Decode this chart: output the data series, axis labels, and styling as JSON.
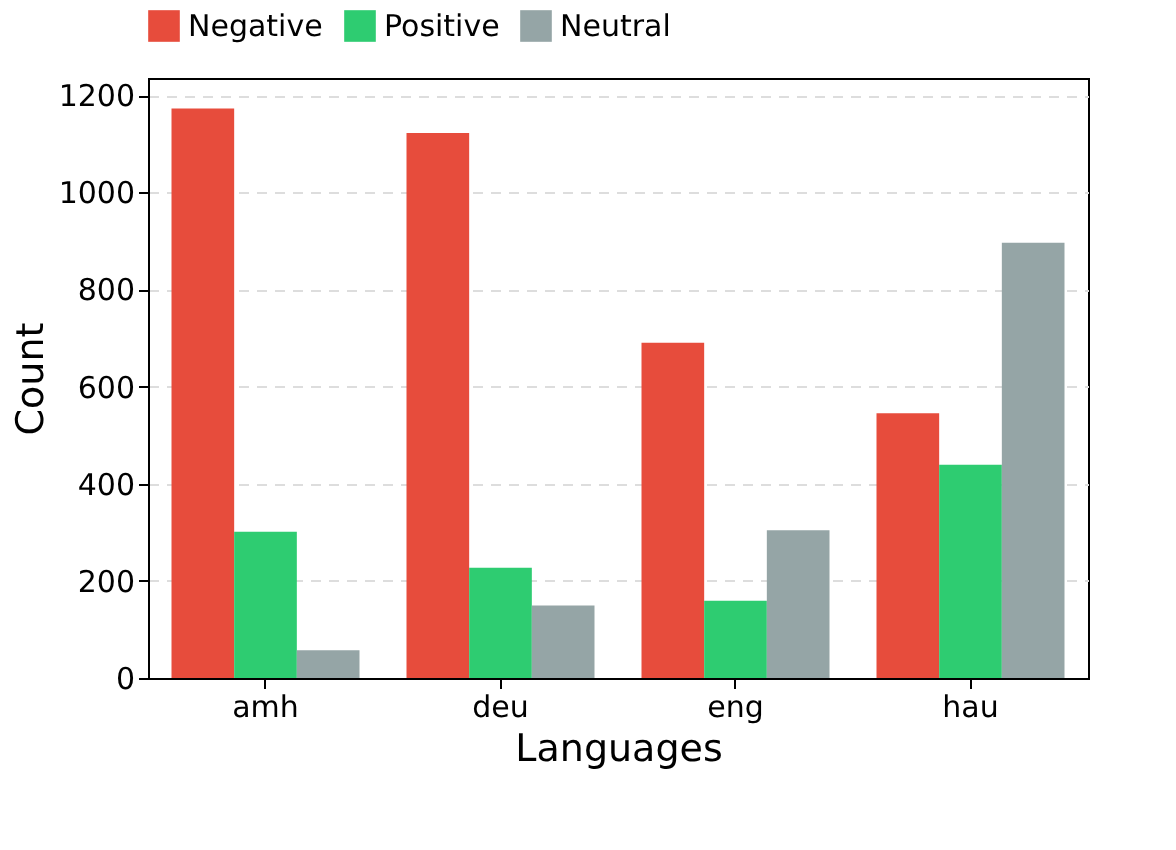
{
  "chart_data": {
    "type": "bar",
    "xlabel": "Languages",
    "ylabel": "Count",
    "categories": [
      "amh",
      "deu",
      "eng",
      "hau"
    ],
    "series": [
      {
        "name": "Negative",
        "color": "#e74c3c",
        "values": [
          1172,
          1122,
          690,
          545
        ]
      },
      {
        "name": "Positive",
        "color": "#2ecc71",
        "values": [
          301,
          227,
          159,
          439
        ]
      },
      {
        "name": "Neutral",
        "color": "#95a5a6",
        "values": [
          57,
          149,
          304,
          896
        ]
      }
    ],
    "ylim": [
      0,
      1235
    ],
    "yticks": [
      0,
      200,
      400,
      600,
      800,
      1000,
      1200
    ],
    "grid": "y",
    "legend": "top"
  }
}
